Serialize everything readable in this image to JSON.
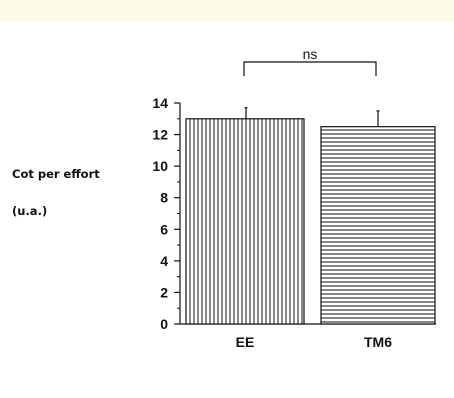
{
  "chart_data": {
    "type": "bar",
    "categories": [
      "EE",
      "TM6"
    ],
    "values": [
      13.0,
      12.5
    ],
    "error_up": [
      0.7,
      1.0
    ],
    "ylabel_lines": [
      "Cot per effort",
      "(u.a.)"
    ],
    "ylim": [
      0,
      14
    ],
    "yticks": [
      "0",
      "2",
      "4",
      "6",
      "8",
      "10",
      "12",
      "14"
    ],
    "significance": {
      "label": "ns",
      "between": [
        "EE",
        "TM6"
      ]
    },
    "bar_patterns": [
      "vertical-lines",
      "horizontal-lines"
    ],
    "grid": false,
    "legend": "none"
  },
  "colors": {
    "top_band": "#fffbe9",
    "ink": "#111111",
    "bar_fill": "#ffffff"
  }
}
